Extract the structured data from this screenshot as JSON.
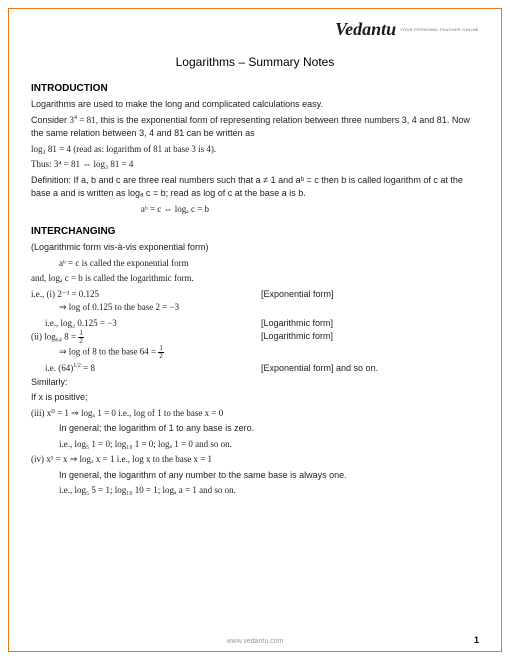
{
  "logo": {
    "brand": "Vedantu",
    "tagline": "YOUR PERSONAL TEACHER ONLINE"
  },
  "title": "Logarithms – Summary Notes",
  "sections": {
    "intro": {
      "heading": "INTRODUCTION",
      "p1": "Logarithms are used to make the long and complicated calculations easy.",
      "p2a": "Consider ",
      "p2b": "3",
      "p2c": "4",
      "p2d": " = 81",
      "p2e": ", this is the exponential form of representing relation between three numbers 3, 4 and 81. Now the same relation between 3, 4 and 81 can be written as",
      "p3": "log₃ 81 = 4  (read as: logarithm of 81 at base 3 is 4).",
      "p4": "Thus:  3⁴ = 81 ⇔ log₃ 81 = 4",
      "def1": "Definition:",
      "def2": " If a, b and c are three real numbers such that  a ≠ 1  and  aᵇ = c then b is called logarithm of c at the base a and is written as  logₐ c = b;  read as log of c at the base a is b.",
      "def3": "aᵇ = c ⇔ logₐ c = b"
    },
    "inter": {
      "heading": "INTERCHANGING",
      "p1": "(Logarithmic form vis-à-vis exponential form)",
      "p2": "aᵇ = c  is called the exponential form",
      "p3": "and,  logₐ c = b  is called the logarithmic form.",
      "r1a": "i.e., (i)  2⁻³ = 0.125",
      "r1b": "[Exponential form]",
      "r2a": "⇒ log of 0.125 to the base 2 = −3",
      "r3a": "i.e.,      log₂ 0.125 = −3",
      "r3b": "[Logarithmic form]",
      "r4a": "(ii)  log₆₄ 8 = ",
      "r4n": "1",
      "r4d": "2",
      "r4b": "[Logarithmic form]",
      "r5a": "⇒ log of 8 to the base 64 = ",
      "r6a": "i.e.  (64)",
      "r6s": "1/2",
      "r6b": " = 8",
      "r6c": "[Exponential form] and so on.",
      "sim": "Similarly:",
      "pos": "If x is positive;",
      "r7": "(iii)  x⁰ = 1 ⇒ logₓ 1 = 0  i.e.,  log of 1 to the base x = 0",
      "r8": "In general; the logarithm of 1 to any base is zero.",
      "r9": "i.e.,  log₅ 1 = 0; log₁₀ 1 = 0; logₐ 1 = 0      and so on.",
      "r10": "(iv)  x¹ = x ⇒ logₓ x = 1  i.e.,  log x  to the base  x = 1",
      "r11": "In general, the logarithm of any number to the same base is always one.",
      "r12": "i.e.,  log₅ 5 = 1; log₁₀ 10 = 1; logₐ a = 1      and so on."
    }
  },
  "footer": "www.vedantu.com",
  "pageNum": "1",
  "colors": {
    "border": "#e67817",
    "text": "#222222",
    "footer": "#999999"
  }
}
